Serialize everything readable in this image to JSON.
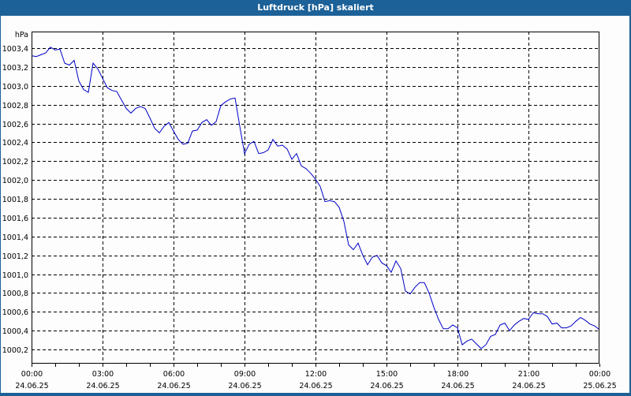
{
  "window": {
    "title": "Luftdruck [hPa] skaliert"
  },
  "colors": {
    "titlebar": "#1c6198",
    "background": "#fcfdfc",
    "line": "#0000c8",
    "grid": "#000000"
  },
  "chart_data": {
    "type": "line",
    "title": "Luftdruck [hPa] skaliert",
    "xlabel": "",
    "ylabel": "hPa",
    "ylim": [
      1000.05,
      1003.5
    ],
    "grid": true,
    "legend": null,
    "y_ticks": [
      "1003,4",
      "1003,2",
      "1003,0",
      "1002,8",
      "1002,6",
      "1002,4",
      "1002,2",
      "1002,0",
      "1001,8",
      "1001,6",
      "1001,4",
      "1001,2",
      "1001,0",
      "1000,8",
      "1000,6",
      "1000,4",
      "1000,2"
    ],
    "x_ticks": [
      {
        "time": "00:00",
        "date": "24.06.25"
      },
      {
        "time": "03:00",
        "date": "24.06.25"
      },
      {
        "time": "06:00",
        "date": "24.06.25"
      },
      {
        "time": "09:00",
        "date": "24.06.25"
      },
      {
        "time": "12:00",
        "date": "24.06.25"
      },
      {
        "time": "15:00",
        "date": "24.06.25"
      },
      {
        "time": "18:00",
        "date": "24.06.25"
      },
      {
        "time": "21:00",
        "date": "24.06.25"
      },
      {
        "time": "00:00",
        "date": "25.06.25"
      }
    ],
    "series": [
      {
        "name": "Luftdruck",
        "unit": "hPa",
        "x_hours": [
          0,
          0.2,
          0.4,
          0.6,
          0.8,
          1.0,
          1.2,
          1.4,
          1.6,
          1.8,
          2.0,
          2.2,
          2.4,
          2.6,
          2.8,
          3.0,
          3.2,
          3.4,
          3.6,
          3.8,
          4.0,
          4.2,
          4.4,
          4.6,
          4.8,
          5.0,
          5.2,
          5.4,
          5.6,
          5.8,
          6.0,
          6.2,
          6.4,
          6.6,
          6.8,
          7.0,
          7.2,
          7.4,
          7.6,
          7.8,
          8.0,
          8.2,
          8.4,
          8.6,
          8.8,
          9.0,
          9.2,
          9.4,
          9.6,
          9.8,
          10.0,
          10.2,
          10.4,
          10.6,
          10.8,
          11.0,
          11.2,
          11.4,
          11.6,
          11.8,
          12.0,
          12.2,
          12.4,
          12.6,
          12.8,
          13.0,
          13.2,
          13.4,
          13.6,
          13.8,
          14.0,
          14.2,
          14.4,
          14.6,
          14.8,
          15.0,
          15.2,
          15.4,
          15.6,
          15.8,
          16.0,
          16.2,
          16.4,
          16.6,
          16.8,
          17.0,
          17.2,
          17.4,
          17.6,
          17.8,
          18.0,
          18.2,
          18.4,
          18.6,
          18.8,
          19.0,
          19.2,
          19.4,
          19.6,
          19.8,
          20.0,
          20.2,
          20.4,
          20.6,
          20.8,
          21.0,
          21.2,
          21.4,
          21.6,
          21.8,
          22.0,
          22.2,
          22.4,
          22.6,
          22.8,
          23.0,
          23.2,
          23.4,
          23.6,
          23.8,
          24.0
        ],
        "values": [
          1003.32,
          1003.31,
          1003.33,
          1003.35,
          1003.41,
          1003.38,
          1003.39,
          1003.24,
          1003.22,
          1003.27,
          1003.05,
          1002.96,
          1002.93,
          1003.24,
          1003.18,
          1003.08,
          1002.98,
          1002.95,
          1002.94,
          1002.85,
          1002.76,
          1002.71,
          1002.76,
          1002.78,
          1002.76,
          1002.66,
          1002.55,
          1002.5,
          1002.57,
          1002.61,
          1002.52,
          1002.43,
          1002.38,
          1002.39,
          1002.52,
          1002.53,
          1002.61,
          1002.64,
          1002.58,
          1002.62,
          1002.79,
          1002.83,
          1002.86,
          1002.87,
          1002.57,
          1002.28,
          1002.38,
          1002.41,
          1002.28,
          1002.29,
          1002.32,
          1002.43,
          1002.36,
          1002.37,
          1002.33,
          1002.22,
          1002.28,
          1002.15,
          1002.12,
          1002.07,
          1002.01,
          1001.93,
          1001.77,
          1001.78,
          1001.77,
          1001.71,
          1001.56,
          1001.31,
          1001.26,
          1001.33,
          1001.2,
          1001.1,
          1001.18,
          1001.2,
          1001.12,
          1001.09,
          1001.02,
          1001.14,
          1001.06,
          1000.82,
          1000.79,
          1000.86,
          1000.91,
          1000.91,
          1000.8,
          1000.65,
          1000.52,
          1000.42,
          1000.42,
          1000.46,
          1000.43,
          1000.25,
          1000.29,
          1000.31,
          1000.26,
          1000.21,
          1000.25,
          1000.34,
          1000.36,
          1000.46,
          1000.48,
          1000.4,
          1000.46,
          1000.5,
          1000.53,
          1000.52,
          1000.59,
          1000.58,
          1000.58,
          1000.55,
          1000.47,
          1000.48,
          1000.43,
          1000.43,
          1000.45,
          1000.5,
          1000.54,
          1000.51,
          1000.47,
          1000.45,
          1000.41
        ]
      }
    ]
  }
}
